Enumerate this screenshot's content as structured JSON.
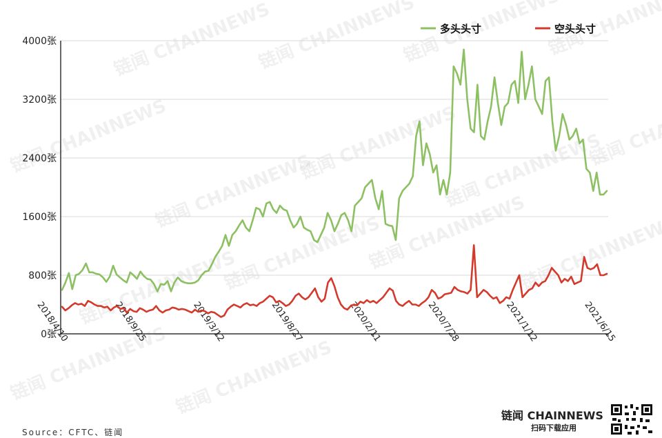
{
  "chart_data": {
    "type": "line",
    "title": "",
    "xlabel": "",
    "ylabel": "",
    "ylim": [
      0,
      4000
    ],
    "y_ticks": [
      0,
      800,
      1600,
      2400,
      3200,
      4000
    ],
    "y_tick_suffix": "张",
    "x_tick_labels": [
      "2018/4/10",
      "2018/9/25",
      "2019/3/12",
      "2019/8/27",
      "2020/2/11",
      "2020/7/28",
      "2021/1/12",
      "2021/6/15"
    ],
    "grid": true,
    "legend_position": "top-right",
    "series": [
      {
        "name": "多头头寸",
        "color": "#8cc063",
        "values": [
          600,
          700,
          830,
          610,
          800,
          820,
          870,
          960,
          840,
          840,
          820,
          810,
          770,
          710,
          780,
          930,
          810,
          770,
          730,
          700,
          840,
          800,
          750,
          850,
          790,
          750,
          740,
          680,
          580,
          680,
          670,
          720,
          580,
          700,
          770,
          720,
          700,
          690,
          690,
          700,
          730,
          800,
          850,
          860,
          950,
          1050,
          1120,
          1200,
          1350,
          1200,
          1350,
          1400,
          1480,
          1550,
          1450,
          1400,
          1550,
          1720,
          1700,
          1600,
          1780,
          1800,
          1700,
          1650,
          1750,
          1700,
          1680,
          1550,
          1450,
          1500,
          1600,
          1450,
          1420,
          1400,
          1280,
          1250,
          1350,
          1450,
          1650,
          1550,
          1400,
          1500,
          1620,
          1650,
          1550,
          1400,
          1750,
          1800,
          1850,
          2000,
          2050,
          2100,
          1850,
          1700,
          1950,
          1500,
          1480,
          1470,
          1280,
          1850,
          1950,
          2000,
          2050,
          2150,
          2700,
          2900,
          2300,
          2600,
          2450,
          2200,
          2300,
          1900,
          2100,
          1900,
          2200,
          3650,
          3550,
          3400,
          3880,
          3200,
          2800,
          2750,
          3400,
          2700,
          2650,
          2900,
          3100,
          3500,
          3150,
          2850,
          3100,
          3150,
          3400,
          3450,
          3150,
          3850,
          3200,
          3400,
          3650,
          3200,
          3100,
          3000,
          3450,
          3500,
          2900,
          2500,
          2700,
          3000,
          2850,
          2650,
          2700,
          2800,
          2600,
          2650,
          2250,
          2200,
          1950,
          2200,
          1900,
          1900,
          1950
        ]
      },
      {
        "name": "空头头寸",
        "color": "#d33a2c",
        "values": [
          370,
          320,
          350,
          390,
          420,
          400,
          410,
          380,
          450,
          430,
          400,
          380,
          380,
          360,
          370,
          320,
          360,
          380,
          340,
          350,
          290,
          340,
          310,
          300,
          350,
          330,
          300,
          320,
          330,
          380,
          320,
          290,
          320,
          330,
          360,
          350,
          330,
          340,
          330,
          310,
          290,
          330,
          300,
          320,
          310,
          280,
          300,
          290,
          260,
          230,
          250,
          330,
          370,
          400,
          380,
          360,
          400,
          420,
          390,
          400,
          380,
          420,
          440,
          480,
          520,
          500,
          430,
          450,
          420,
          380,
          400,
          450,
          520,
          550,
          500,
          470,
          500,
          560,
          620,
          500,
          440,
          480,
          700,
          760,
          650,
          500,
          400,
          350,
          330,
          380,
          400,
          390,
          440,
          420,
          460,
          430,
          450,
          420,
          460,
          500,
          560,
          620,
          590,
          450,
          400,
          380,
          420,
          450,
          400,
          400,
          380,
          420,
          450,
          500,
          600,
          560,
          480,
          500,
          540,
          550,
          560,
          640,
          600,
          580,
          570,
          550,
          600,
          1210,
          500,
          550,
          600,
          570,
          520,
          480,
          500,
          420,
          450,
          500,
          480,
          600,
          700,
          800,
          500,
          550,
          600,
          620,
          700,
          650,
          700,
          720,
          800,
          900,
          850,
          800,
          700,
          750,
          720,
          780,
          680,
          700,
          720,
          1050,
          900,
          880,
          900,
          950,
          800,
          800,
          820
        ]
      }
    ]
  },
  "footer": {
    "source": "Source：CFTC、链闻",
    "brand": "链闻 CHAINNEWS",
    "brand_sub": "扫码下载应用"
  },
  "watermark": "链闻 CHAINNEWS"
}
